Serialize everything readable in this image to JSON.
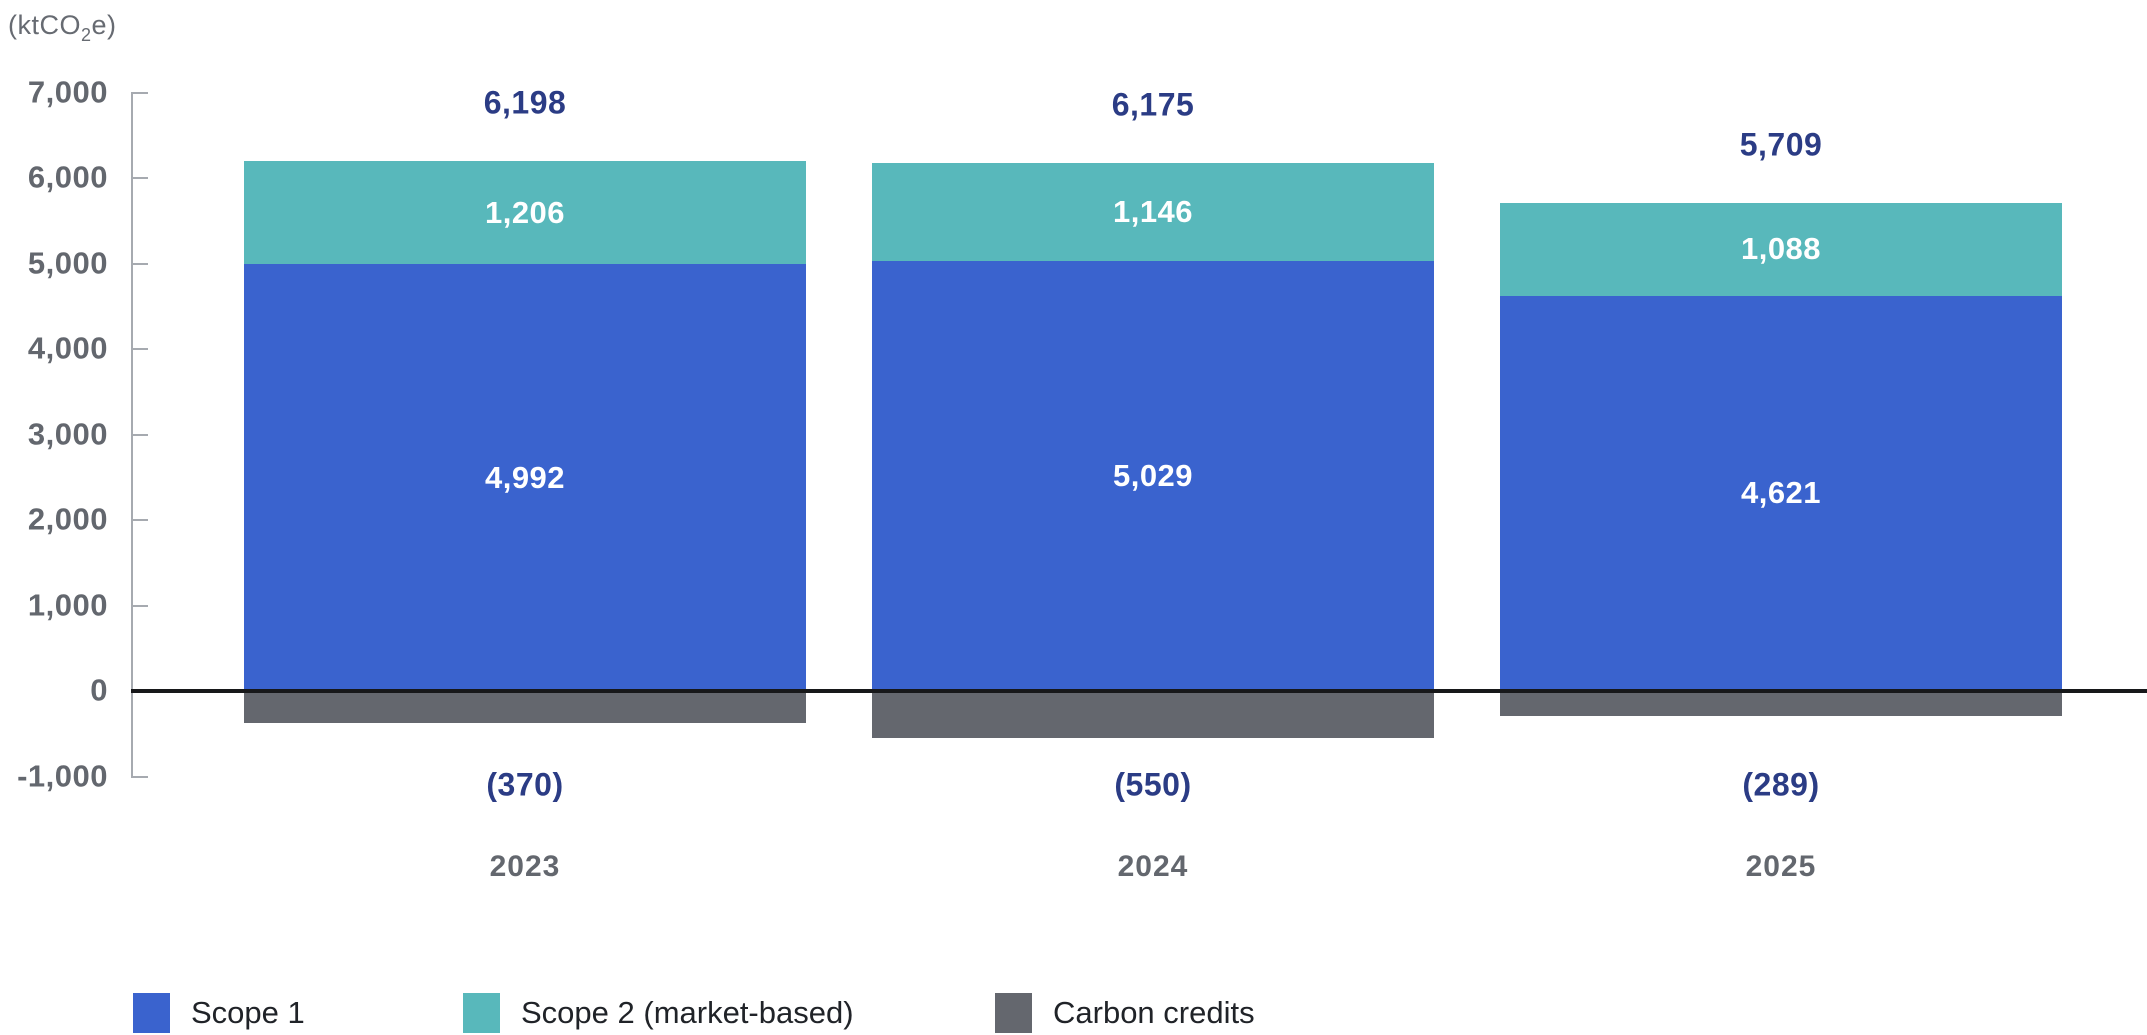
{
  "unit_label": {
    "prefix": "(ktCO",
    "subscript": "2",
    "suffix": "e)"
  },
  "colors": {
    "scope1": "#3A63CE",
    "scope2": "#58B8BB",
    "carbon_credits": "#64676E",
    "total_text": "#2B3C85",
    "axis_text": "#63676E",
    "axis_line": "#A6AAB0",
    "zero_line": "#17181A",
    "segment_value_text": "#FFFFFF",
    "legend_text": "#202328"
  },
  "chart_data": {
    "type": "bar",
    "stacked": true,
    "title": "",
    "xlabel": "",
    "ylabel": "(ktCO2e)",
    "unit": "ktCO2e",
    "categories": [
      "2023",
      "2024",
      "2025"
    ],
    "series": [
      {
        "name": "Scope 1",
        "color": "#3A63CE",
        "values": [
          4992,
          5029,
          4621
        ],
        "labels": [
          "4,992",
          "5,029",
          "4,621"
        ]
      },
      {
        "name": "Scope 2 (market-based)",
        "color": "#58B8BB",
        "values": [
          1206,
          1146,
          1088
        ],
        "labels": [
          "1,206",
          "1,146",
          "1,088"
        ]
      },
      {
        "name": "Carbon credits",
        "color": "#64676E",
        "values": [
          -370,
          -550,
          -289
        ],
        "labels": [
          "(370)",
          "(550)",
          "(289)"
        ]
      }
    ],
    "totals": {
      "values": [
        6198,
        6175,
        5709
      ],
      "labels": [
        "6,198",
        "6,175",
        "5,709"
      ]
    },
    "yticks": [
      {
        "value": 7000,
        "label": "7,000"
      },
      {
        "value": 6000,
        "label": "6,000"
      },
      {
        "value": 5000,
        "label": "5,000"
      },
      {
        "value": 4000,
        "label": "4,000"
      },
      {
        "value": 3000,
        "label": "3,000"
      },
      {
        "value": 2000,
        "label": "2,000"
      },
      {
        "value": 1000,
        "label": "1,000"
      },
      {
        "value": 0,
        "label": "0"
      },
      {
        "value": -1000,
        "label": "-1,000"
      }
    ],
    "ylim": [
      -1000,
      7000
    ],
    "grid": false,
    "legend_position": "bottom",
    "legend": [
      "Scope 1",
      "Scope 2 (market-based)",
      "Carbon credits"
    ]
  }
}
